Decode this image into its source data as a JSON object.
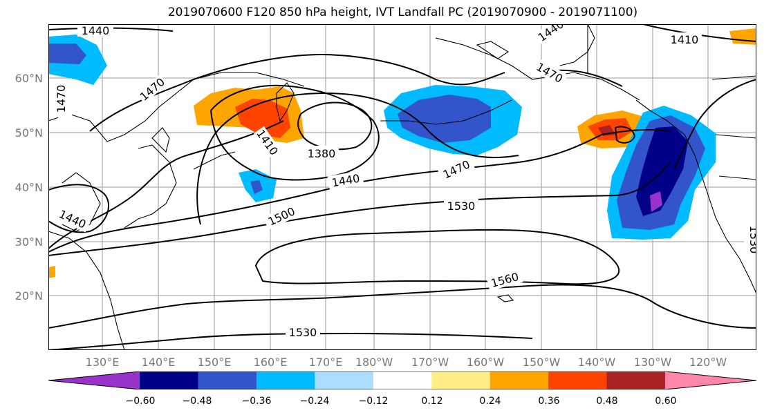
{
  "title": "2019070600 F120 850 hPa height, IVT Landfall PC (2019070900 - 2019071100)",
  "lat_labels": [
    "60°N",
    "50°N",
    "40°N",
    "30°N",
    "20°N"
  ],
  "lon_labels": [
    "130°E",
    "140°E",
    "150°E",
    "160°E",
    "170°E",
    "180°W",
    "170°W",
    "160°W",
    "150°W",
    "140°W",
    "130°W",
    "120°W"
  ],
  "contour_labels": [
    "1440",
    "1470",
    "1470",
    "1410",
    "1380",
    "1440",
    "1440",
    "1470",
    "1500",
    "1530",
    "1530",
    "1560",
    "1410",
    "1470",
    "1440",
    "1530"
  ],
  "colorbar": {
    "tick_labels": [
      "−0.60",
      "−0.48",
      "−0.36",
      "−0.24",
      "−0.12",
      "0.12",
      "0.24",
      "0.36",
      "0.48",
      "0.60"
    ],
    "colors": [
      "#9933cc",
      "#000088",
      "#3355cc",
      "#00bbff",
      "#aaddff",
      "#ffffff",
      "#ffee88",
      "#ffa500",
      "#ff4400",
      "#aa2222",
      "#ff88aa"
    ]
  }
}
